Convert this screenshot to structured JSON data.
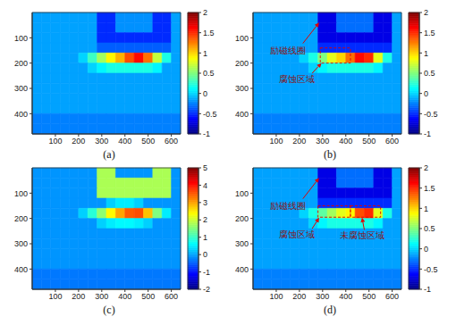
{
  "chart_data": [
    {
      "type": "heatmap",
      "title": "(a)",
      "xlim": [
        0,
        640
      ],
      "ylim": [
        0,
        480
      ],
      "xticks": [
        100,
        200,
        300,
        400,
        500,
        600
      ],
      "yticks": [
        100,
        200,
        300,
        400
      ],
      "grid": false,
      "colorbar": {
        "range": [
          -1,
          2
        ],
        "ticks": [
          -1,
          -0.5,
          0,
          0.5,
          1,
          1.5,
          2
        ]
      },
      "annotations": [],
      "cells": [
        [
          -0.15,
          -0.15,
          -0.15,
          -0.15,
          -0.15,
          -0.15,
          -0.15,
          -0.5,
          -0.5,
          -0.2,
          -0.2,
          -0.2,
          -0.2,
          -0.5,
          -0.5,
          -0.15
        ],
        [
          -0.15,
          -0.15,
          -0.15,
          -0.15,
          -0.15,
          -0.15,
          -0.15,
          -0.5,
          -0.5,
          -0.2,
          -0.2,
          -0.2,
          -0.2,
          -0.5,
          -0.5,
          -0.15
        ],
        [
          -0.15,
          -0.15,
          -0.15,
          -0.15,
          -0.15,
          -0.15,
          -0.15,
          -0.5,
          -0.5,
          -0.5,
          -0.5,
          -0.5,
          -0.5,
          -0.5,
          -0.5,
          -0.15
        ],
        [
          -0.15,
          -0.15,
          -0.15,
          -0.15,
          -0.15,
          -0.15,
          -0.15,
          -0.35,
          -0.35,
          -0.35,
          -0.35,
          -0.35,
          -0.35,
          -0.35,
          -0.35,
          -0.15
        ],
        [
          -0.15,
          -0.15,
          -0.15,
          -0.15,
          -0.15,
          0.0,
          0.3,
          0.6,
          0.9,
          1.1,
          1.4,
          1.6,
          1.3,
          0.7,
          0.2,
          -0.15
        ],
        [
          -0.15,
          -0.15,
          -0.15,
          -0.15,
          -0.15,
          -0.15,
          0.0,
          0.1,
          0.2,
          0.2,
          0.2,
          0.2,
          0.2,
          0.1,
          -0.15,
          -0.15
        ],
        [
          -0.15,
          -0.15,
          -0.15,
          -0.15,
          -0.15,
          -0.15,
          -0.15,
          -0.15,
          -0.15,
          -0.15,
          -0.15,
          -0.15,
          -0.15,
          -0.15,
          -0.15,
          -0.15
        ],
        [
          -0.15,
          -0.15,
          -0.15,
          -0.15,
          -0.15,
          -0.15,
          -0.15,
          -0.15,
          -0.15,
          -0.15,
          -0.15,
          -0.15,
          -0.15,
          -0.15,
          -0.15,
          -0.15
        ],
        [
          -0.15,
          -0.15,
          -0.15,
          -0.15,
          -0.15,
          -0.15,
          -0.15,
          -0.15,
          -0.15,
          -0.15,
          -0.15,
          -0.15,
          -0.15,
          -0.15,
          -0.15,
          -0.15
        ],
        [
          -0.15,
          -0.15,
          -0.15,
          -0.15,
          -0.15,
          -0.15,
          -0.15,
          -0.15,
          -0.15,
          -0.15,
          -0.15,
          -0.15,
          -0.15,
          -0.15,
          -0.15,
          -0.15
        ],
        [
          -0.25,
          -0.25,
          -0.25,
          -0.25,
          -0.25,
          -0.25,
          -0.25,
          -0.25,
          -0.25,
          -0.25,
          -0.25,
          -0.25,
          -0.25,
          -0.25,
          -0.25,
          -0.25
        ],
        [
          -0.25,
          -0.25,
          -0.25,
          -0.25,
          -0.25,
          -0.25,
          -0.25,
          -0.25,
          -0.25,
          -0.25,
          -0.25,
          -0.25,
          -0.25,
          -0.25,
          -0.25,
          -0.25
        ]
      ]
    },
    {
      "type": "heatmap",
      "title": "(b)",
      "xlim": [
        0,
        640
      ],
      "ylim": [
        0,
        480
      ],
      "xticks": [
        100,
        200,
        300,
        400,
        500,
        600
      ],
      "yticks": [
        100,
        200,
        300,
        400
      ],
      "grid": false,
      "colorbar": {
        "range": [
          -1,
          2
        ],
        "ticks": [
          -1,
          -0.5,
          0,
          0.5,
          1,
          1.5,
          2
        ]
      },
      "annotations": [
        {
          "text": "励磁线圈"
        },
        {
          "text": "腐蚀区域",
          "x": [
            290,
            420
          ],
          "y": [
            140,
            200
          ]
        }
      ],
      "cells": [
        [
          -0.15,
          -0.15,
          -0.15,
          -0.15,
          -0.15,
          -0.15,
          -0.15,
          -0.7,
          -0.7,
          -0.3,
          -0.3,
          -0.3,
          -0.3,
          -0.7,
          -0.7,
          -0.15
        ],
        [
          -0.15,
          -0.15,
          -0.15,
          -0.15,
          -0.15,
          -0.15,
          -0.15,
          -0.7,
          -0.7,
          -0.3,
          -0.3,
          -0.3,
          -0.3,
          -0.7,
          -0.7,
          -0.15
        ],
        [
          -0.15,
          -0.15,
          -0.15,
          -0.15,
          -0.15,
          -0.15,
          -0.15,
          -0.7,
          -0.7,
          -0.7,
          -0.7,
          -0.7,
          -0.7,
          -0.7,
          -0.7,
          -0.15
        ],
        [
          -0.15,
          -0.15,
          -0.15,
          -0.15,
          -0.15,
          -0.15,
          -0.15,
          -0.5,
          -0.5,
          -0.5,
          -0.5,
          -0.5,
          -0.5,
          -0.5,
          -0.5,
          -0.15
        ],
        [
          -0.15,
          -0.15,
          -0.15,
          -0.15,
          -0.15,
          0.0,
          0.2,
          0.5,
          0.8,
          1.0,
          1.3,
          1.6,
          1.5,
          0.8,
          0.2,
          -0.15
        ],
        [
          -0.15,
          -0.15,
          -0.15,
          -0.15,
          -0.15,
          -0.15,
          0.0,
          0.1,
          0.2,
          0.2,
          0.2,
          0.2,
          0.2,
          0.1,
          -0.15,
          -0.15
        ],
        [
          -0.15,
          -0.15,
          -0.15,
          -0.15,
          -0.15,
          -0.15,
          -0.15,
          -0.15,
          -0.15,
          -0.15,
          -0.15,
          -0.15,
          -0.15,
          -0.15,
          -0.15,
          -0.15
        ],
        [
          -0.15,
          -0.15,
          -0.15,
          -0.15,
          -0.15,
          -0.15,
          -0.15,
          -0.15,
          -0.15,
          -0.15,
          -0.15,
          -0.15,
          -0.15,
          -0.15,
          -0.15,
          -0.15
        ],
        [
          -0.15,
          -0.15,
          -0.15,
          -0.15,
          -0.15,
          -0.15,
          -0.15,
          -0.15,
          -0.15,
          -0.15,
          -0.15,
          -0.15,
          -0.15,
          -0.15,
          -0.15,
          -0.15
        ],
        [
          -0.15,
          -0.15,
          -0.15,
          -0.15,
          -0.15,
          -0.15,
          -0.15,
          -0.15,
          -0.15,
          -0.15,
          -0.15,
          -0.15,
          -0.15,
          -0.15,
          -0.15,
          -0.15
        ],
        [
          -0.25,
          -0.25,
          -0.25,
          -0.25,
          -0.25,
          -0.25,
          -0.25,
          -0.25,
          -0.25,
          -0.25,
          -0.25,
          -0.25,
          -0.25,
          -0.25,
          -0.25,
          -0.25
        ],
        [
          -0.25,
          -0.25,
          -0.25,
          -0.25,
          -0.25,
          -0.25,
          -0.25,
          -0.25,
          -0.25,
          -0.25,
          -0.25,
          -0.25,
          -0.25,
          -0.25,
          -0.25,
          -0.25
        ]
      ]
    },
    {
      "type": "heatmap",
      "title": "(c)",
      "xlim": [
        0,
        640
      ],
      "ylim": [
        0,
        480
      ],
      "xticks": [
        100,
        200,
        300,
        400,
        500,
        600
      ],
      "yticks": [
        100,
        200,
        300,
        400
      ],
      "grid": false,
      "colorbar": {
        "range": [
          -2,
          5
        ],
        "ticks": [
          -2,
          -1,
          0,
          1,
          2,
          3,
          4,
          5
        ]
      },
      "annotations": [],
      "cells": [
        [
          -0.1,
          -0.1,
          -0.1,
          -0.1,
          -0.1,
          -0.1,
          -0.1,
          1.8,
          1.8,
          -0.1,
          -0.1,
          -0.1,
          -0.1,
          1.8,
          1.8,
          -0.1
        ],
        [
          -0.1,
          -0.1,
          -0.1,
          -0.1,
          -0.1,
          -0.1,
          -0.1,
          1.8,
          1.8,
          1.8,
          1.8,
          1.8,
          1.8,
          1.8,
          1.8,
          -0.1
        ],
        [
          -0.1,
          -0.1,
          -0.1,
          -0.1,
          -0.1,
          -0.1,
          -0.1,
          1.8,
          1.8,
          1.8,
          1.8,
          1.8,
          1.8,
          1.8,
          1.8,
          -0.1
        ],
        [
          -0.1,
          -0.1,
          -0.1,
          -0.1,
          -0.1,
          -0.1,
          -0.1,
          -0.1,
          0.3,
          0.5,
          0.5,
          0.3,
          -0.1,
          -0.1,
          -0.1,
          -0.1
        ],
        [
          -0.1,
          -0.1,
          -0.1,
          -0.1,
          -0.1,
          0.3,
          0.9,
          1.6,
          2.4,
          3.0,
          3.5,
          3.6,
          2.8,
          1.5,
          0.5,
          -0.1
        ],
        [
          -0.1,
          -0.1,
          -0.1,
          -0.1,
          -0.1,
          -0.1,
          -0.1,
          0.3,
          0.5,
          0.6,
          0.6,
          0.5,
          0.3,
          -0.1,
          -0.1,
          -0.1
        ],
        [
          -0.1,
          -0.1,
          -0.1,
          -0.1,
          -0.1,
          -0.1,
          -0.1,
          -0.1,
          -0.1,
          -0.1,
          -0.1,
          -0.1,
          -0.1,
          -0.1,
          -0.1,
          -0.1
        ],
        [
          -0.1,
          -0.1,
          -0.1,
          -0.1,
          -0.1,
          -0.1,
          -0.1,
          -0.1,
          -0.1,
          -0.1,
          -0.1,
          -0.1,
          -0.1,
          -0.1,
          -0.1,
          -0.1
        ],
        [
          -0.1,
          -0.1,
          -0.1,
          -0.1,
          -0.1,
          -0.1,
          -0.1,
          -0.1,
          -0.1,
          -0.1,
          -0.1,
          -0.1,
          -0.1,
          -0.1,
          -0.1,
          -0.1
        ],
        [
          -0.1,
          -0.1,
          -0.1,
          -0.1,
          -0.1,
          -0.1,
          -0.1,
          -0.1,
          -0.1,
          -0.1,
          -0.1,
          -0.1,
          -0.1,
          -0.1,
          -0.1,
          -0.1
        ],
        [
          -0.3,
          -0.3,
          -0.3,
          -0.3,
          -0.3,
          -0.3,
          -0.3,
          -0.3,
          -0.3,
          -0.3,
          -0.3,
          -0.3,
          -0.3,
          -0.3,
          -0.3,
          -0.3
        ],
        [
          -0.3,
          -0.3,
          -0.3,
          -0.3,
          -0.3,
          -0.3,
          -0.3,
          -0.3,
          -0.3,
          -0.3,
          -0.3,
          -0.3,
          -0.3,
          -0.3,
          -0.3,
          -0.3
        ]
      ]
    },
    {
      "type": "heatmap",
      "title": "(d)",
      "xlim": [
        0,
        640
      ],
      "ylim": [
        0,
        480
      ],
      "xticks": [
        100,
        200,
        300,
        400,
        500,
        600
      ],
      "yticks": [
        100,
        200,
        300,
        400
      ],
      "grid": false,
      "colorbar": {
        "range": [
          -1,
          2
        ],
        "ticks": [
          -1,
          -0.5,
          0,
          0.5,
          1,
          1.5,
          2
        ]
      },
      "annotations": [
        {
          "text": "励磁线圈"
        },
        {
          "text": "腐蚀区域",
          "x": [
            280,
            420
          ],
          "y": [
            150,
            195
          ]
        },
        {
          "text": "未腐蚀区域",
          "x": [
            420,
            550
          ],
          "y": [
            150,
            195
          ]
        }
      ],
      "cells": [
        [
          -0.15,
          -0.15,
          -0.15,
          -0.15,
          -0.15,
          -0.15,
          -0.15,
          -0.7,
          -0.7,
          -0.3,
          -0.3,
          -0.3,
          -0.3,
          -0.7,
          -0.7,
          -0.15
        ],
        [
          -0.15,
          -0.15,
          -0.15,
          -0.15,
          -0.15,
          -0.15,
          -0.15,
          -0.7,
          -0.7,
          -0.3,
          -0.3,
          -0.3,
          -0.3,
          -0.7,
          -0.7,
          -0.15
        ],
        [
          -0.15,
          -0.15,
          -0.15,
          -0.15,
          -0.15,
          -0.15,
          -0.15,
          -0.7,
          -0.7,
          -0.7,
          -0.7,
          -0.7,
          -0.7,
          -0.7,
          -0.7,
          -0.15
        ],
        [
          -0.15,
          -0.15,
          -0.15,
          -0.15,
          -0.15,
          -0.15,
          -0.15,
          -0.5,
          -0.5,
          -0.5,
          -0.5,
          -0.5,
          -0.5,
          -0.5,
          -0.5,
          -0.15
        ],
        [
          -0.15,
          -0.15,
          -0.15,
          -0.15,
          -0.15,
          0.0,
          0.2,
          0.4,
          0.6,
          0.8,
          0.9,
          1.4,
          1.5,
          0.8,
          0.2,
          -0.15
        ],
        [
          -0.15,
          -0.15,
          -0.15,
          -0.15,
          -0.15,
          -0.15,
          0.0,
          0.1,
          0.2,
          0.2,
          0.2,
          0.2,
          0.2,
          0.1,
          -0.15,
          -0.15
        ],
        [
          -0.15,
          -0.15,
          -0.15,
          -0.15,
          -0.15,
          -0.15,
          -0.15,
          -0.15,
          -0.15,
          -0.15,
          -0.15,
          -0.15,
          -0.15,
          -0.15,
          -0.15,
          -0.15
        ],
        [
          -0.15,
          -0.15,
          -0.15,
          -0.15,
          -0.15,
          -0.15,
          -0.15,
          -0.15,
          -0.15,
          -0.15,
          -0.15,
          -0.15,
          -0.15,
          -0.15,
          -0.15,
          -0.15
        ],
        [
          -0.15,
          -0.15,
          -0.15,
          -0.15,
          -0.15,
          -0.15,
          -0.15,
          -0.15,
          -0.15,
          -0.15,
          -0.15,
          -0.15,
          -0.15,
          -0.15,
          -0.15,
          -0.15
        ],
        [
          -0.15,
          -0.15,
          -0.15,
          -0.15,
          -0.15,
          -0.15,
          -0.15,
          -0.15,
          -0.15,
          -0.15,
          -0.15,
          -0.15,
          -0.15,
          -0.15,
          -0.15,
          -0.15
        ],
        [
          -0.25,
          -0.25,
          -0.25,
          -0.25,
          -0.25,
          -0.25,
          -0.25,
          -0.25,
          -0.25,
          -0.25,
          -0.25,
          -0.25,
          -0.25,
          -0.25,
          -0.25,
          -0.25
        ],
        [
          -0.25,
          -0.25,
          -0.25,
          -0.25,
          -0.25,
          -0.25,
          -0.25,
          -0.25,
          -0.25,
          -0.25,
          -0.25,
          -0.25,
          -0.25,
          -0.25,
          -0.25,
          -0.25
        ]
      ]
    }
  ]
}
